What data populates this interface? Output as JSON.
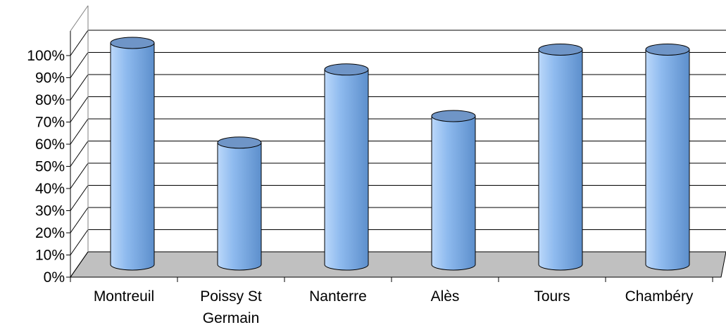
{
  "chart_data": {
    "type": "bar",
    "style": "3d-cylinder",
    "categories": [
      "Montreuil",
      "Poissy St Germain",
      "Nanterre",
      "Alès",
      "Tours",
      "Chambéry"
    ],
    "category_lines": [
      [
        "Montreuil"
      ],
      [
        "Poissy St",
        "Germain"
      ],
      [
        "Nanterre"
      ],
      [
        "Alès"
      ],
      [
        "Tours"
      ],
      [
        "Chambéry"
      ]
    ],
    "values": [
      100,
      55,
      88,
      67,
      97,
      97
    ],
    "ylim": [
      0,
      100
    ],
    "yticks": [
      0,
      10,
      20,
      30,
      40,
      50,
      60,
      70,
      80,
      90,
      100
    ],
    "ytick_labels": [
      "0%",
      "10%",
      "20%",
      "30%",
      "40%",
      "50%",
      "60%",
      "70%",
      "80%",
      "90%",
      "100%"
    ],
    "y_unit": "%",
    "grid": true,
    "legend": "none",
    "colors": {
      "bar_fill_light": "#bcd8fa",
      "bar_fill_mid": "#8fbbef",
      "bar_fill_dark": "#5d8fcc",
      "bar_top": "#6f95c7",
      "floor": "#c0c0c0",
      "grid": "#000000"
    }
  }
}
